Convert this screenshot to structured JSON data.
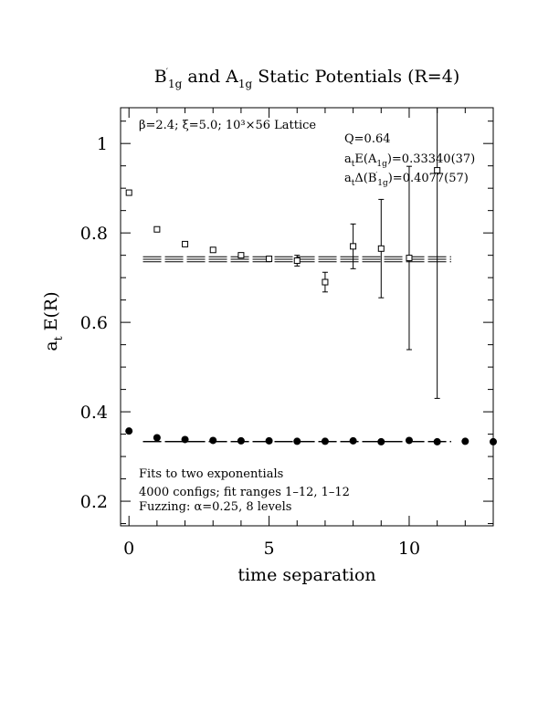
{
  "chart_data": {
    "type": "scatter",
    "title_main": "B",
    "title_sub1": "1g",
    "title_mid": " and A",
    "title_sub2": "1g",
    "title_tail": " Static Potentials (R=4)",
    "xlabel": "time separation",
    "ylabel_main": "a",
    "ylabel_sub": "t",
    "ylabel_tail": " E(R)",
    "xlim": [
      -0.3,
      13.0
    ],
    "ylim": [
      0.145,
      1.08
    ],
    "xticks": [
      0,
      5,
      10
    ],
    "yticks": [
      0.2,
      0.4,
      0.6,
      0.8,
      1.0
    ],
    "ytick_labels": [
      "0.2",
      "0.4",
      "0.6",
      "0.8",
      "1"
    ],
    "annotations": {
      "lattice": "β=2.4; ξ=5.0; 10³×56 Lattice",
      "q": "Q=0.64",
      "fit_a1g_prefix": "a",
      "fit_a1g_sub": "t",
      "fit_a1g_mid": "E(A",
      "fit_a1g_sub2": "1g",
      "fit_a1g_tail": ")=0.33340(37)",
      "fit_b1g_prefix": "a",
      "fit_b1g_sub": "t",
      "fit_b1g_mid": "Δ(B",
      "fit_b1g_sub2": "1g",
      "fit_b1g_tail": ")=0.4077(57)",
      "note1": "Fits to two exponentials",
      "note2": "4000 configs; fit ranges 1–12, 1–12",
      "note3": "Fuzzing: α=0.25, 8 levels"
    },
    "series": [
      {
        "marker": "open-square",
        "x": [
          0,
          1,
          2,
          3,
          4,
          5,
          6,
          7,
          8,
          9,
          10,
          11
        ],
        "y": [
          0.89,
          0.808,
          0.775,
          0.762,
          0.75,
          0.742,
          0.738,
          0.69,
          0.77,
          0.765,
          0.744,
          0.94
        ],
        "yerr": [
          0.003,
          0.003,
          0.003,
          0.003,
          0.004,
          0.006,
          0.012,
          0.022,
          0.05,
          0.11,
          0.205,
          0.51
        ]
      },
      {
        "marker": "filled-circle",
        "x": [
          0,
          1,
          2,
          3,
          4,
          5,
          6,
          7,
          8,
          9,
          10,
          11,
          12,
          13
        ],
        "y": [
          0.357,
          0.342,
          0.338,
          0.336,
          0.335,
          0.335,
          0.334,
          0.334,
          0.335,
          0.333,
          0.336,
          0.333,
          0.334,
          0.333
        ],
        "yerr": [
          0.001,
          0.001,
          0.001,
          0.001,
          0.001,
          0.001,
          0.001,
          0.001,
          0.001,
          0.001,
          0.001,
          0.001,
          0.001,
          0.001
        ]
      }
    ],
    "fit_bands": [
      {
        "series": 0,
        "x_range": [
          0.5,
          11.5
        ],
        "center": 0.7411,
        "half_width": 0.0057
      },
      {
        "series": 1,
        "x_range": [
          0.5,
          11.5
        ],
        "center": 0.3334,
        "half_width": 0.0004
      }
    ]
  }
}
